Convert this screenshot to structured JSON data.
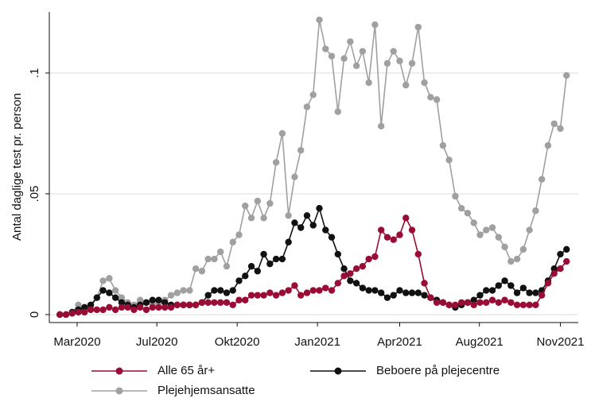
{
  "chart_data": {
    "type": "line",
    "y_label": "Antal daglige test pr. person",
    "x": [
      0,
      1,
      2,
      3,
      4,
      5,
      6,
      7,
      8,
      9,
      10,
      11,
      12,
      13,
      14,
      15,
      16,
      17,
      18,
      19,
      20,
      21,
      22,
      23,
      24,
      25,
      26,
      27,
      28,
      29,
      30,
      31,
      32,
      33,
      34,
      35,
      36,
      37,
      38,
      39,
      40,
      41,
      42,
      43,
      44,
      45,
      46,
      47,
      48,
      49,
      50,
      51,
      52,
      53,
      54,
      55,
      56,
      57,
      58,
      59,
      60,
      61,
      62,
      63,
      64,
      65,
      66,
      67,
      68,
      69,
      70,
      71,
      72,
      73,
      74,
      75,
      76,
      77,
      78,
      79,
      80,
      81,
      82
    ],
    "series": [
      {
        "name": "Alle 65 år+",
        "color": "#990c35",
        "values": [
          0,
          0,
          0.0005,
          0.001,
          0.001,
          0.002,
          0.002,
          0.002,
          0.003,
          0.002,
          0.003,
          0.003,
          0.002,
          0.003,
          0.002,
          0.003,
          0.003,
          0.003,
          0.003,
          0.004,
          0.004,
          0.004,
          0.004,
          0.005,
          0.005,
          0.005,
          0.005,
          0.005,
          0.004,
          0.006,
          0.006,
          0.008,
          0.008,
          0.008,
          0.009,
          0.008,
          0.009,
          0.01,
          0.012,
          0.008,
          0.009,
          0.01,
          0.01,
          0.011,
          0.01,
          0.013,
          0.016,
          0.017,
          0.019,
          0.02,
          0.023,
          0.024,
          0.035,
          0.032,
          0.031,
          0.033,
          0.04,
          0.035,
          0.025,
          0.013,
          0.007,
          0.005,
          0.005,
          0.004,
          0.004,
          0.005,
          0.005,
          0.004,
          0.005,
          0.005,
          0.006,
          0.005,
          0.006,
          0.005,
          0.004,
          0.004,
          0.004,
          0.004,
          0.008,
          0.013,
          0.017,
          0.019,
          0.022
        ]
      },
      {
        "name": "Beboere på plejecentre",
        "color": "#111111",
        "values": [
          0,
          0,
          0.001,
          0.002,
          0.003,
          0.004,
          0.007,
          0.01,
          0.009,
          0.007,
          0.005,
          0.004,
          0.003,
          0.004,
          0.005,
          0.006,
          0.006,
          0.005,
          0.004,
          0.004,
          0.004,
          0.004,
          0.004,
          0.005,
          0.008,
          0.01,
          0.01,
          0.009,
          0.01,
          0.014,
          0.016,
          0.02,
          0.018,
          0.025,
          0.021,
          0.023,
          0.023,
          0.03,
          0.038,
          0.036,
          0.041,
          0.037,
          0.044,
          0.035,
          0.032,
          0.025,
          0.019,
          0.014,
          0.013,
          0.011,
          0.01,
          0.01,
          0.009,
          0.007,
          0.008,
          0.01,
          0.009,
          0.009,
          0.009,
          0.008,
          0.007,
          0.006,
          0.005,
          0.004,
          0.003,
          0.004,
          0.005,
          0.006,
          0.008,
          0.01,
          0.01,
          0.012,
          0.014,
          0.012,
          0.009,
          0.011,
          0.009,
          0.009,
          0.01,
          0.014,
          0.019,
          0.025,
          0.027
        ]
      },
      {
        "name": "Plejehjemsansatte",
        "color": "#a0a0a0",
        "values": [
          0,
          0,
          0.001,
          0.004,
          0.002,
          0.003,
          0.007,
          0.014,
          0.015,
          0.01,
          0.007,
          0.005,
          0.004,
          0.006,
          0.005,
          0.004,
          0.005,
          0.006,
          0.008,
          0.009,
          0.01,
          0.01,
          0.019,
          0.018,
          0.023,
          0.023,
          0.026,
          0.02,
          0.03,
          0.033,
          0.045,
          0.04,
          0.047,
          0.04,
          0.046,
          0.063,
          0.075,
          0.041,
          0.057,
          0.068,
          0.086,
          0.091,
          0.122,
          0.11,
          0.107,
          0.084,
          0.106,
          0.113,
          0.103,
          0.109,
          0.096,
          0.12,
          0.078,
          0.104,
          0.109,
          0.105,
          0.095,
          0.104,
          0.119,
          0.096,
          0.09,
          0.089,
          0.07,
          0.064,
          0.049,
          0.044,
          0.042,
          0.038,
          0.033,
          0.035,
          0.036,
          0.032,
          0.028,
          0.022,
          0.023,
          0.027,
          0.035,
          0.043,
          0.056,
          0.07,
          0.079,
          0.077,
          0.099
        ]
      }
    ],
    "xlim": [
      -1.7,
      83.9
    ],
    "xticks": [
      {
        "value": 2.8,
        "label": "Mar2020"
      },
      {
        "value": 15.7,
        "label": "Jul2020"
      },
      {
        "value": 28.7,
        "label": "Okt2020"
      },
      {
        "value": 41.7,
        "label": "Jan2021"
      },
      {
        "value": 55,
        "label": "Apr2021"
      },
      {
        "value": 67.9,
        "label": "Aug2021"
      },
      {
        "value": 81,
        "label": "Nov2021"
      }
    ],
    "ylim": [
      -0.0033,
      0.1253
    ],
    "yticks": [
      0,
      {
        "value": 0.05,
        "label": ".05"
      },
      {
        "value": 0.1,
        "label": ".1"
      }
    ],
    "grid": true
  }
}
